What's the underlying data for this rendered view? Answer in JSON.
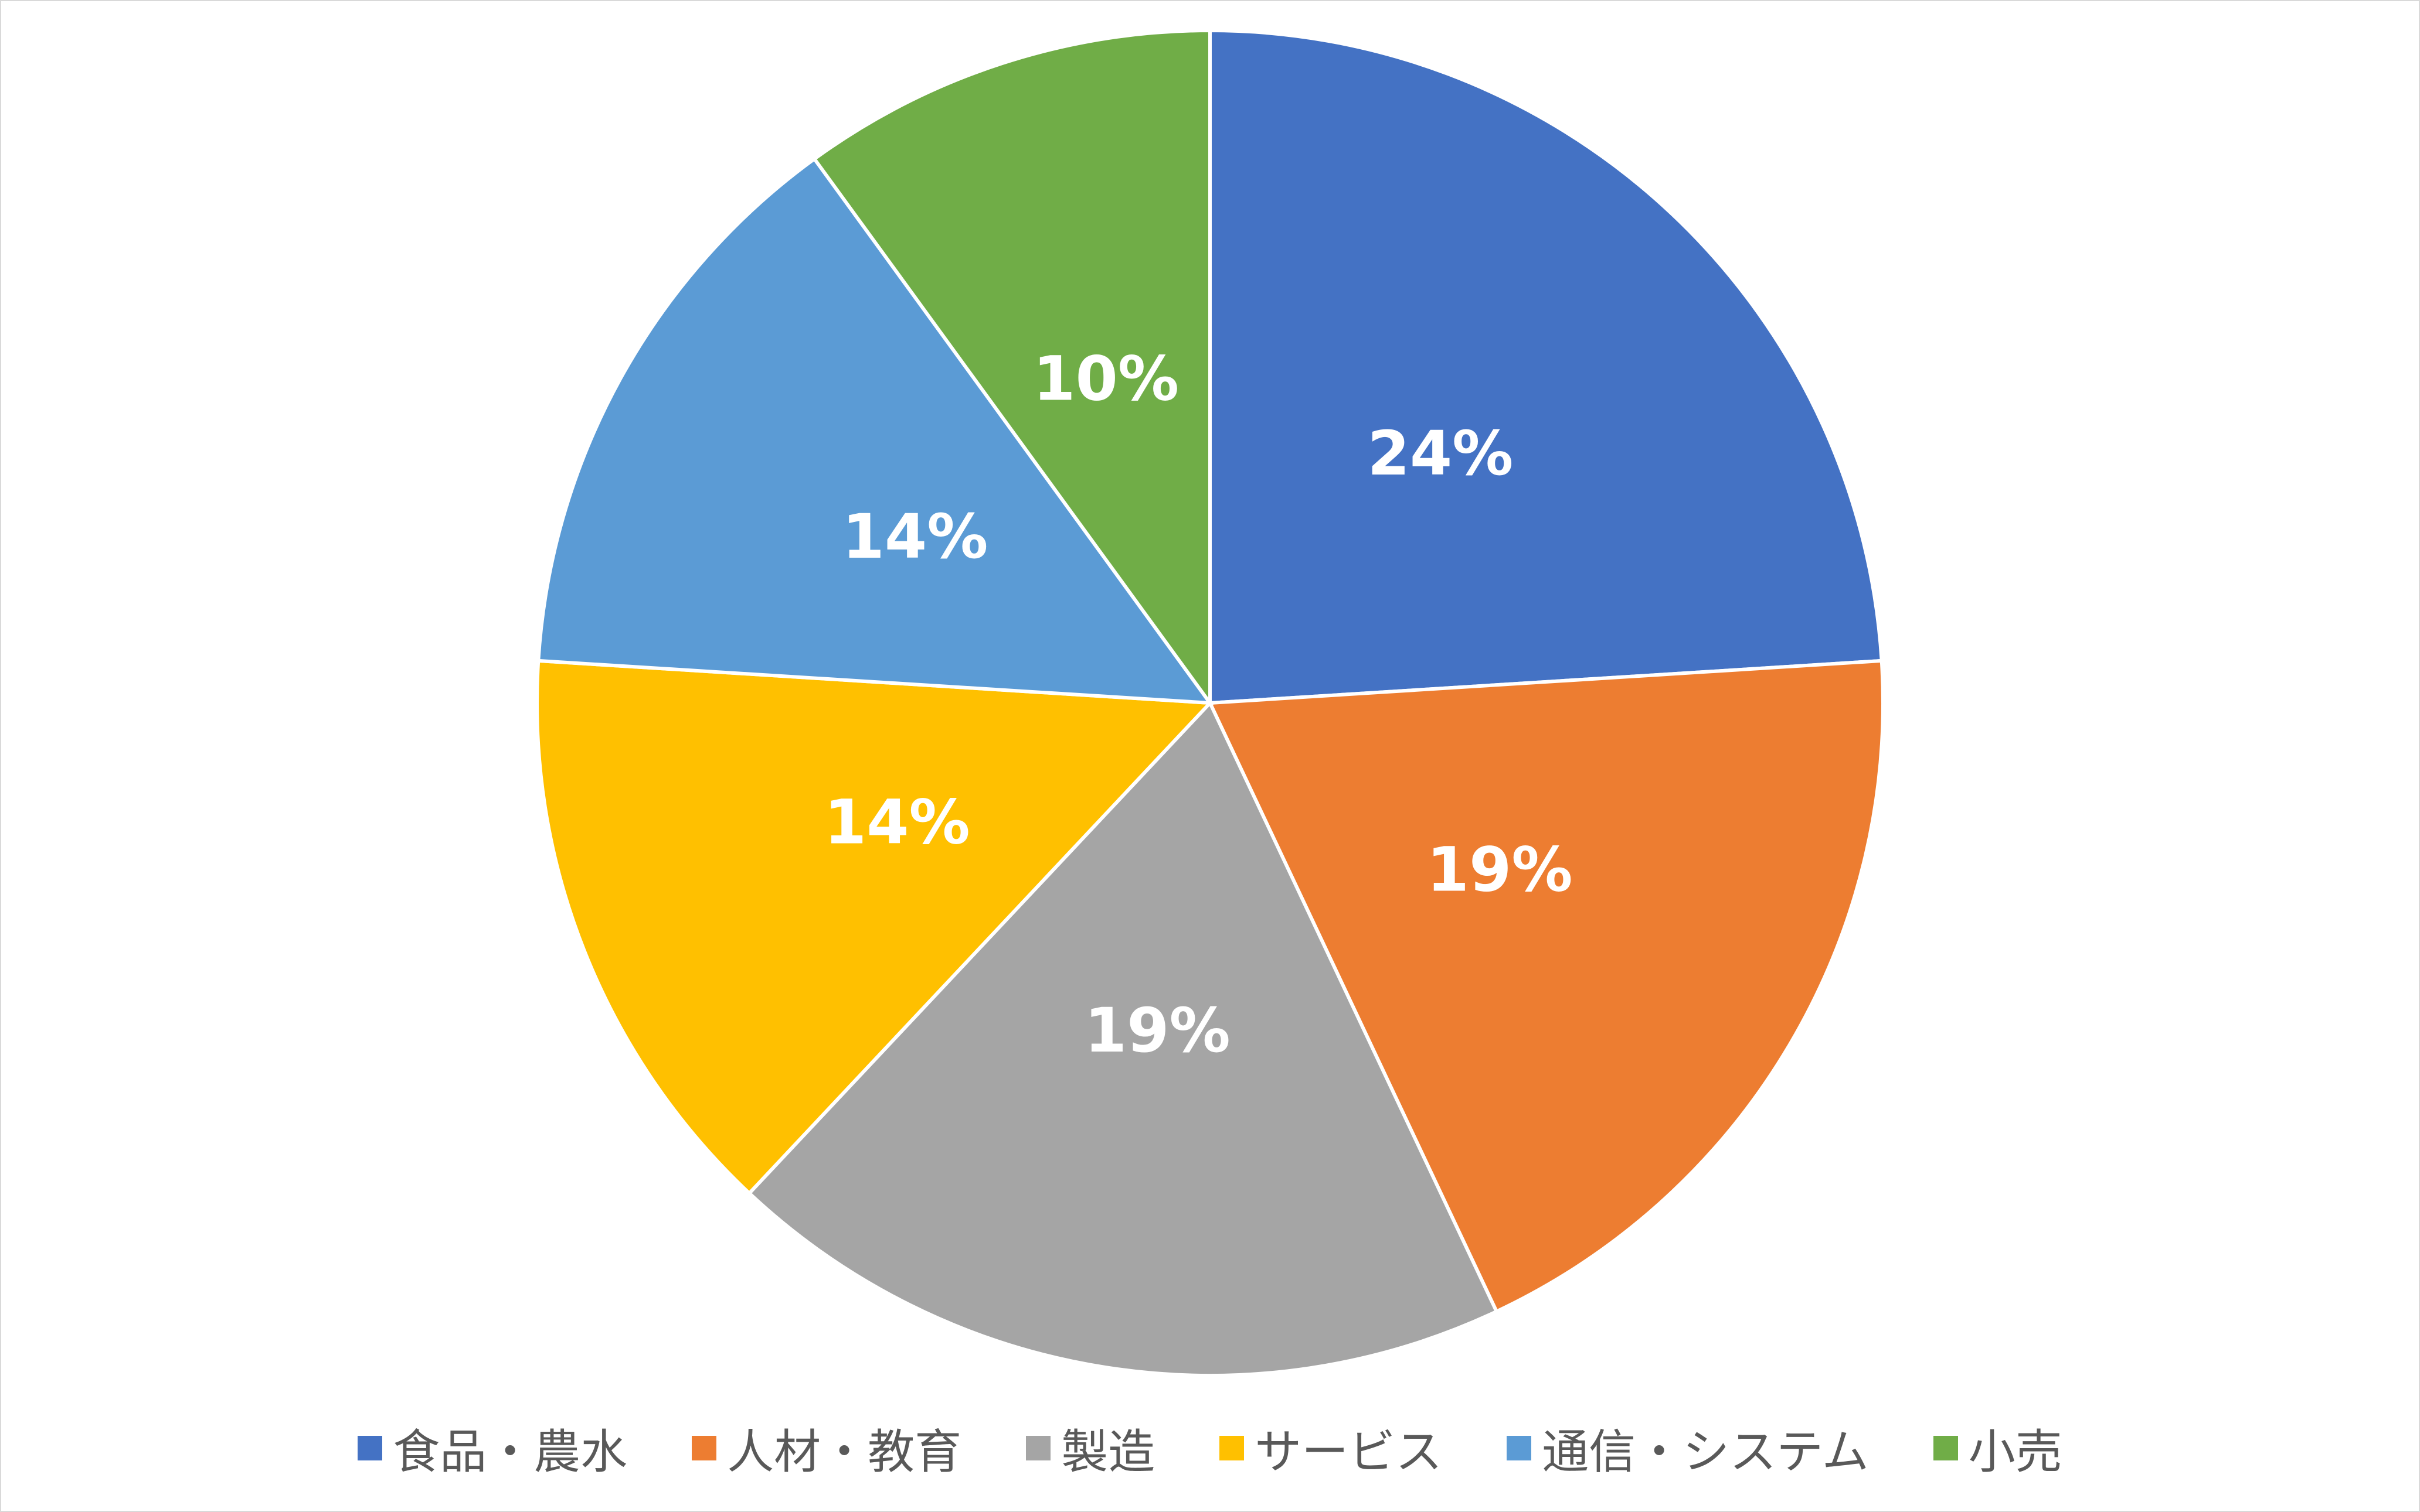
{
  "chart_data": {
    "type": "pie",
    "categories": [
      "食品・農水",
      "人材・教育",
      "製造",
      "サービス",
      "通信・システム",
      "小売"
    ],
    "values": [
      24,
      19,
      19,
      14,
      14,
      10
    ],
    "value_labels": [
      "24%",
      "19%",
      "19%",
      "14%",
      "14%",
      "10%"
    ],
    "colors": [
      "#4472c4",
      "#ed7d31",
      "#a5a5a5",
      "#ffc000",
      "#5b9bd5",
      "#70ad47"
    ],
    "legend": "bottom"
  }
}
